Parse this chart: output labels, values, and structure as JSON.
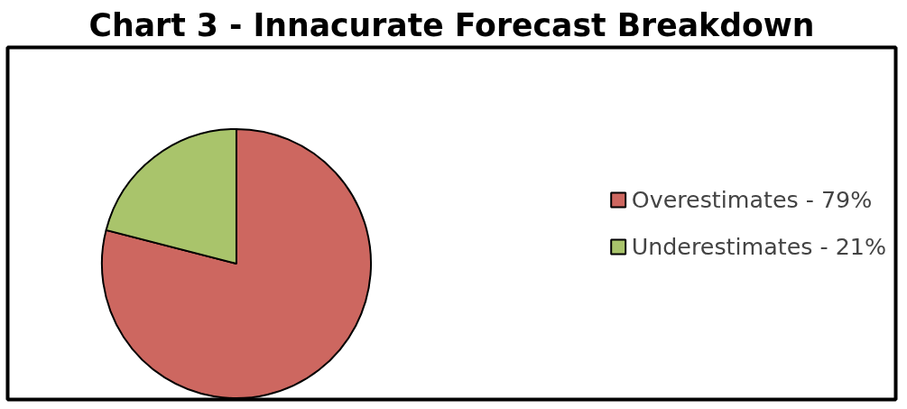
{
  "chart_data": {
    "type": "pie",
    "title": "Chart 3 - Innacurate Forecast Breakdown",
    "categories": [
      "Overestimates - 79%",
      "Underestimates - 21%"
    ],
    "values": [
      79,
      21
    ],
    "colors": [
      "#cd6760",
      "#a9c46b"
    ],
    "legend": "right"
  }
}
